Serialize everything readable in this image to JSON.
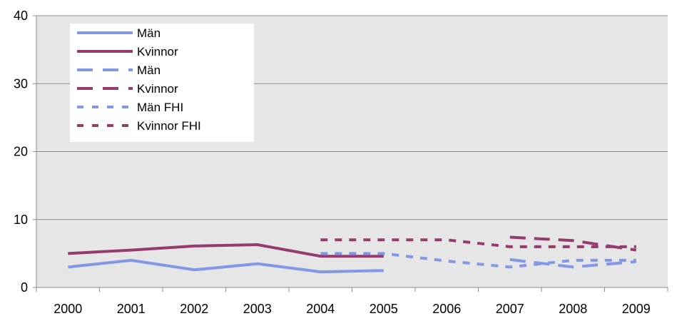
{
  "chart_data": {
    "type": "line",
    "categories": [
      "2000",
      "2001",
      "2002",
      "2003",
      "2004",
      "2005",
      "2006",
      "2007",
      "2008",
      "2009"
    ],
    "ylim": [
      0,
      40
    ],
    "yticks": [
      "0",
      "10",
      "20",
      "30",
      "40"
    ],
    "grid": "horizontal",
    "legend_position": "top-left",
    "series": [
      {
        "name": "Män",
        "style": "solid",
        "color": "#8497e6",
        "values": [
          3.0,
          4.0,
          2.6,
          3.5,
          2.3,
          2.5,
          null,
          null,
          null,
          null
        ]
      },
      {
        "name": "Kvinnor",
        "style": "solid",
        "color": "#953c6c",
        "values": [
          5.0,
          5.5,
          6.1,
          6.3,
          4.6,
          4.6,
          null,
          null,
          null,
          null
        ]
      },
      {
        "name": "Män",
        "style": "dashed",
        "color": "#8497e6",
        "values": [
          null,
          null,
          null,
          null,
          null,
          null,
          null,
          4.1,
          3.0,
          3.8
        ]
      },
      {
        "name": "Kvinnor",
        "style": "dashed",
        "color": "#953c6c",
        "values": [
          null,
          null,
          null,
          null,
          null,
          null,
          null,
          7.4,
          6.9,
          5.5
        ]
      },
      {
        "name": "Män FHI",
        "style": "dotted",
        "color": "#8497e6",
        "values": [
          null,
          null,
          null,
          null,
          5.0,
          5.0,
          3.9,
          3.0,
          4.0,
          4.0
        ]
      },
      {
        "name": "Kvinnor FHI",
        "style": "dotted",
        "color": "#953c6c",
        "values": [
          null,
          null,
          null,
          null,
          7.0,
          7.0,
          7.0,
          6.0,
          6.0,
          6.0
        ]
      }
    ]
  }
}
